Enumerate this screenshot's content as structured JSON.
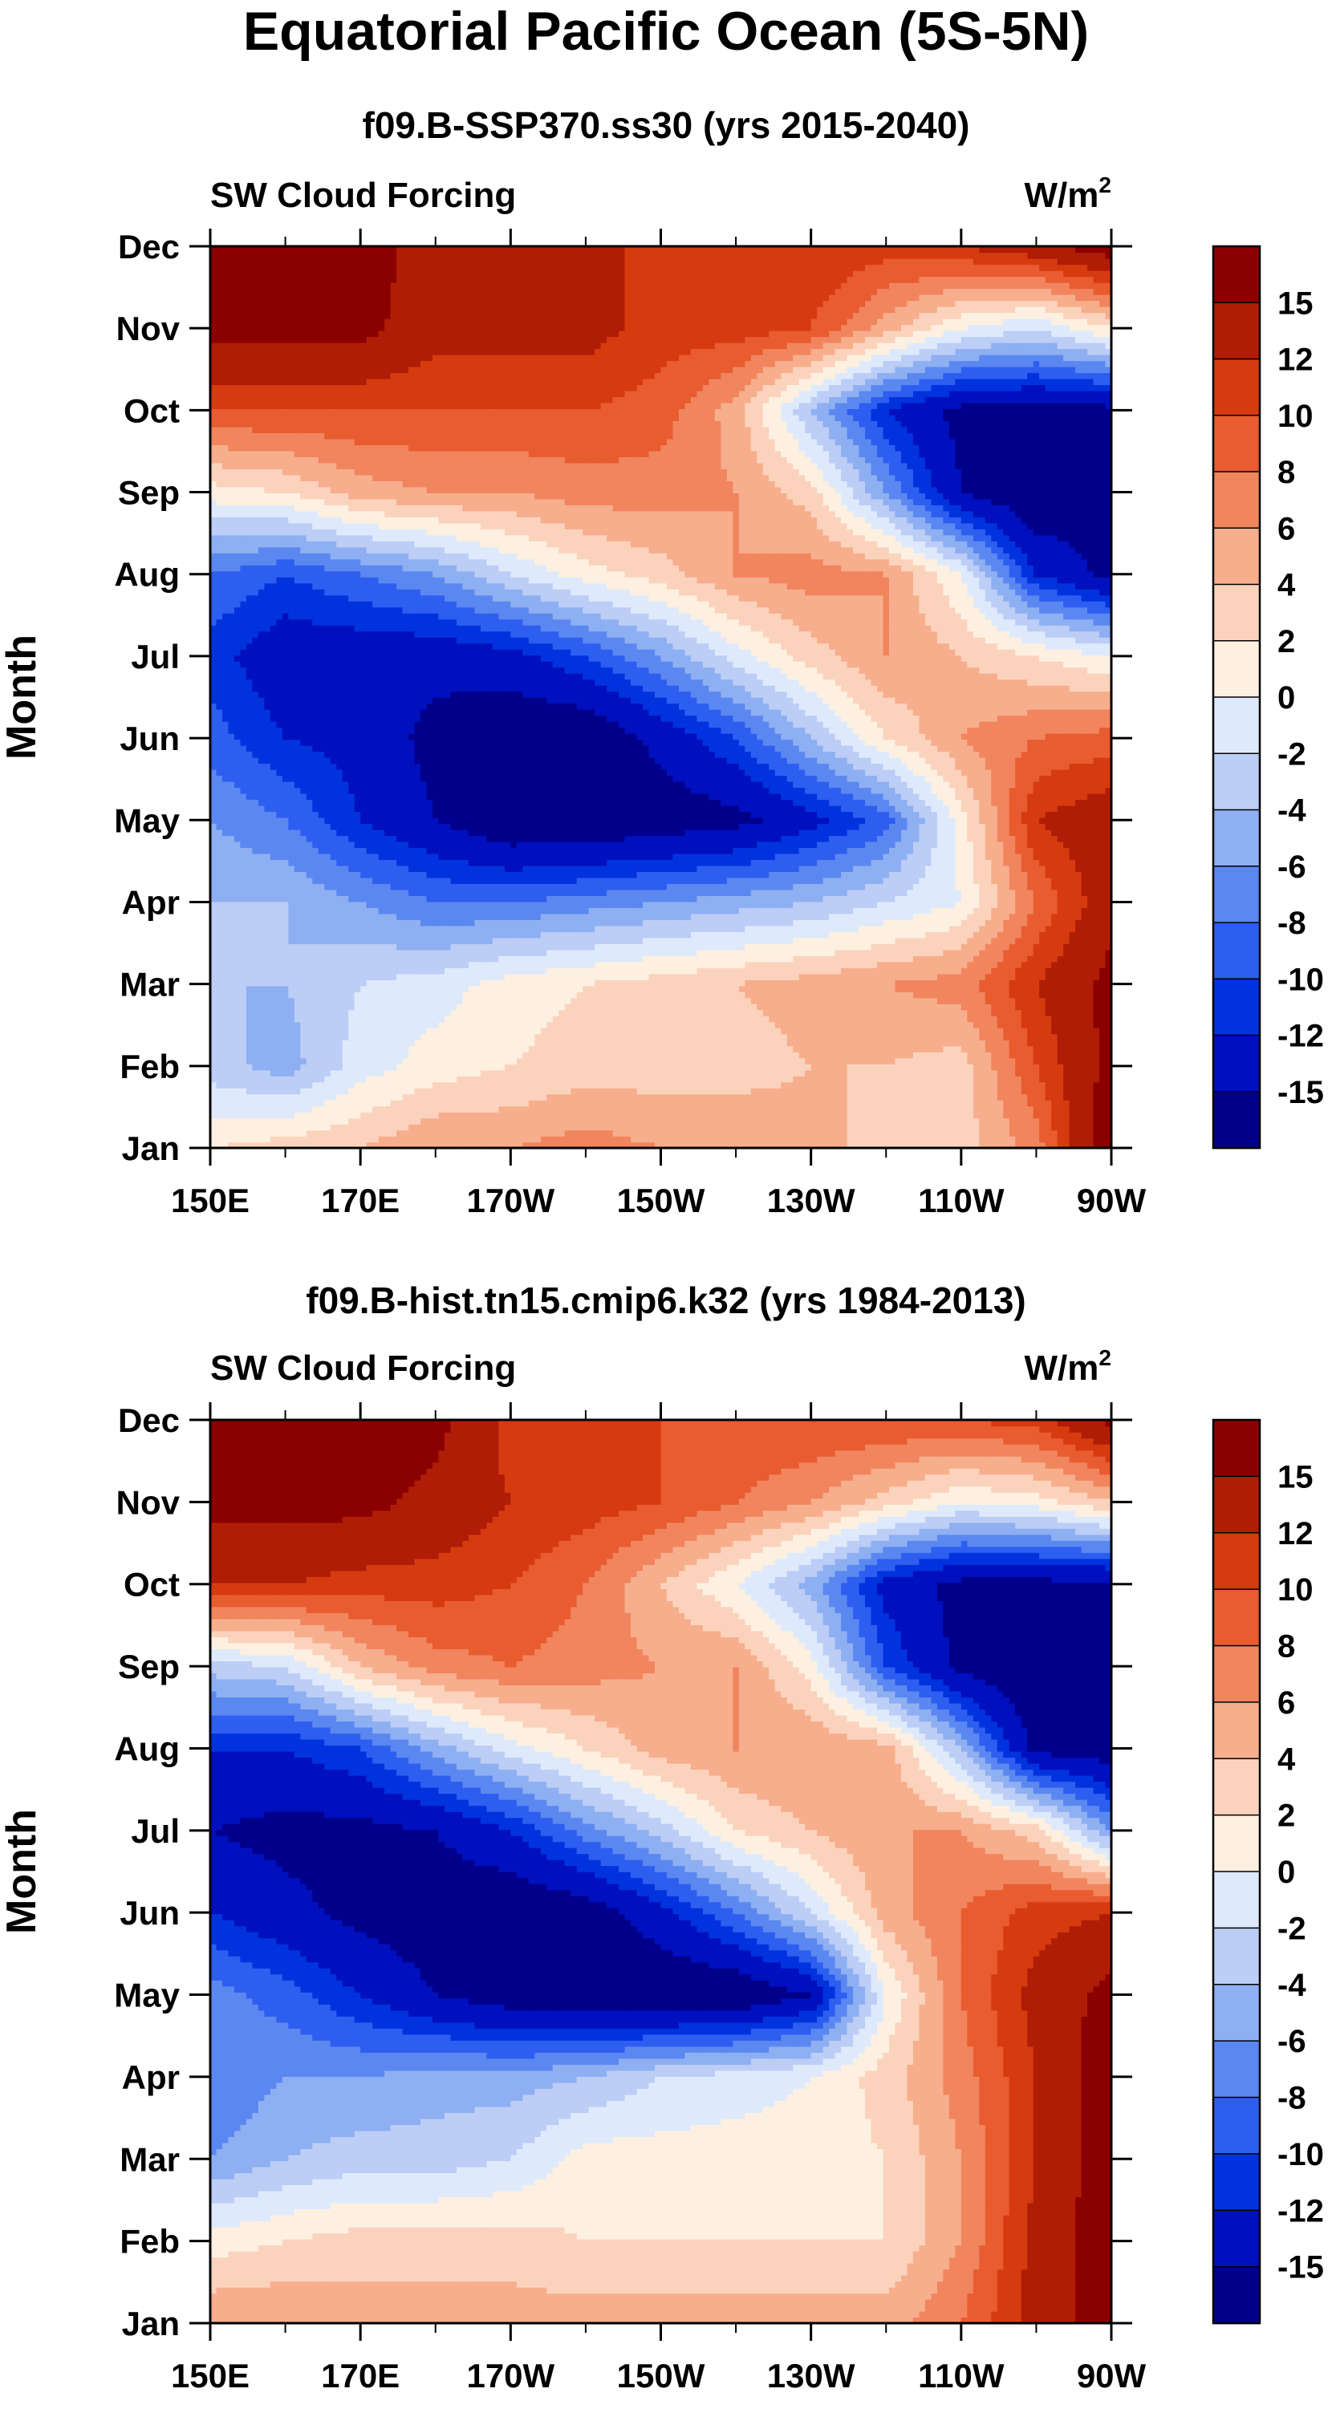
{
  "figure": {
    "title": "Equatorial Pacific Ocean (5S-5N)"
  },
  "palette": {
    "colors": [
      "#00008b",
      "#0010bf",
      "#0033dd",
      "#2e5ef0",
      "#5b88f0",
      "#8eaff2",
      "#bccdf6",
      "#deeafb",
      "#fdf0e1",
      "#fbd3bd",
      "#f7ae8d",
      "#f1855e",
      "#e85c30",
      "#d63b10",
      "#b01d06",
      "#8b0000"
    ],
    "contour_levels": [
      -15,
      -12,
      -10,
      -8,
      -6,
      -4,
      -2,
      0,
      2,
      4,
      6,
      8,
      10,
      12,
      15
    ],
    "colorbar_labels": [
      "15",
      "12",
      "10",
      "8",
      "6",
      "4",
      "2",
      "0",
      "-2",
      "-4",
      "-6",
      "-8",
      "-10",
      "-12",
      "-15"
    ]
  },
  "chart_data": [
    {
      "type": "heatmap",
      "title": "f09.B-SSP370.ss30 (yrs 2015-2040)",
      "left_label": "SW Cloud Forcing",
      "units_base": "W/m",
      "units_exp": "2",
      "ylabel": "Month",
      "xlabel": "",
      "x_ticks": [
        "150E",
        "170E",
        "170W",
        "150W",
        "130W",
        "110W",
        "90W"
      ],
      "y_ticks": [
        "Jan",
        "Feb",
        "Mar",
        "Apr",
        "May",
        "Jun",
        "Jul",
        "Aug",
        "Sep",
        "Oct",
        "Nov",
        "Dec"
      ],
      "xlim": [
        150,
        270
      ],
      "x_units": "degrees east longitude",
      "ylim": [
        1,
        12
      ],
      "x": [
        150,
        160,
        170,
        180,
        190,
        200,
        210,
        220,
        230,
        240,
        250,
        260,
        270
      ],
      "y": [
        1,
        2,
        3,
        4,
        5,
        6,
        7,
        8,
        9,
        10,
        11,
        12
      ],
      "values": [
        [
          2,
          3,
          4,
          6,
          6,
          7,
          6,
          6,
          5,
          3,
          3,
          7,
          18
        ],
        [
          -3,
          -5,
          -1,
          1,
          2,
          3,
          3,
          3,
          4,
          4,
          3,
          10,
          16
        ],
        [
          -4,
          -4,
          -2,
          -1,
          1,
          2,
          3,
          4,
          5,
          6,
          7,
          12,
          16
        ],
        [
          -4,
          -4,
          -6,
          -8,
          -8,
          -7,
          -6,
          -5,
          -4,
          -2,
          0,
          8,
          14
        ],
        [
          -6,
          -8,
          -12,
          -15,
          -18,
          -18,
          -17,
          -16,
          -13,
          -9,
          1,
          12,
          14
        ],
        [
          -9,
          -12,
          -13,
          -16,
          -18,
          -18,
          -14,
          -10,
          -4,
          2,
          6,
          8,
          9
        ],
        [
          -11,
          -14,
          -14,
          -14,
          -13,
          -10,
          -6,
          -1,
          3,
          6,
          4,
          2,
          0
        ],
        [
          -8,
          -10,
          -8,
          -6,
          -2,
          1,
          3,
          6,
          7,
          6,
          0,
          -12,
          -16
        ],
        [
          1,
          2,
          5,
          6,
          6,
          7,
          7,
          6,
          3,
          -6,
          -15,
          -18,
          -16
        ],
        [
          10,
          10,
          10,
          10,
          10,
          10,
          9,
          5,
          -4,
          -12,
          -16,
          -16,
          -16
        ],
        [
          16,
          16,
          16,
          13,
          13,
          13,
          11,
          11,
          10,
          5,
          0,
          -2,
          2
        ],
        [
          17,
          17,
          17,
          13,
          12,
          12,
          12,
          12,
          12,
          11,
          12,
          14,
          17
        ]
      ]
    },
    {
      "type": "heatmap",
      "title": "f09.B-hist.tn15.cmip6.k32 (yrs 1984-2013)",
      "left_label": "SW Cloud Forcing",
      "units_base": "W/m",
      "units_exp": "2",
      "ylabel": "Month",
      "xlabel": "",
      "x_ticks": [
        "150E",
        "170E",
        "170W",
        "150W",
        "130W",
        "110W",
        "90W"
      ],
      "y_ticks": [
        "Jan",
        "Feb",
        "Mar",
        "Apr",
        "May",
        "Jun",
        "Jul",
        "Aug",
        "Sep",
        "Oct",
        "Nov",
        "Dec"
      ],
      "xlim": [
        150,
        270
      ],
      "x_units": "degrees east longitude",
      "ylim": [
        1,
        12
      ],
      "x": [
        150,
        160,
        170,
        180,
        190,
        200,
        210,
        220,
        230,
        240,
        250,
        260,
        270
      ],
      "y": [
        1,
        2,
        3,
        4,
        5,
        6,
        7,
        8,
        9,
        10,
        11,
        12
      ],
      "values": [
        [
          6,
          6,
          5,
          5,
          5,
          5,
          5,
          5,
          5,
          5,
          8,
          13,
          17
        ],
        [
          1,
          2,
          3,
          3,
          3,
          2,
          2,
          2,
          2,
          2,
          6,
          13,
          17
        ],
        [
          -6,
          -4,
          -3,
          -3,
          -2,
          1,
          1,
          1,
          1,
          2,
          6,
          12,
          17
        ],
        [
          -8,
          -6,
          -6,
          -5,
          -5,
          -4,
          -2,
          -1,
          0,
          3,
          7,
          12,
          17
        ],
        [
          -7,
          -9,
          -12,
          -15,
          -17,
          -18,
          -18,
          -18,
          -15,
          0,
          8,
          13,
          16
        ],
        [
          -12,
          -14,
          -16,
          -17,
          -18,
          -17,
          -13,
          -8,
          -2,
          5,
          8,
          11,
          12
        ],
        [
          -15,
          -16,
          -16,
          -15,
          -12,
          -7,
          -3,
          2,
          4,
          6,
          6,
          3,
          -6
        ],
        [
          -12,
          -12,
          -10,
          -5,
          -1,
          2,
          5,
          6,
          6,
          5,
          -4,
          -16,
          -17
        ],
        [
          -3,
          -2,
          4,
          7,
          8,
          7,
          6,
          6,
          1,
          -10,
          -16,
          -18,
          -17
        ],
        [
          12,
          12,
          11,
          11,
          10,
          8,
          4,
          0,
          -5,
          -13,
          -16,
          -16,
          -16
        ],
        [
          16,
          16,
          16,
          14,
          12,
          11,
          10,
          8,
          6,
          3,
          0,
          1,
          4
        ],
        [
          17,
          17,
          17,
          16,
          11,
          10,
          10,
          10,
          10,
          10,
          10,
          11,
          16
        ]
      ]
    }
  ]
}
